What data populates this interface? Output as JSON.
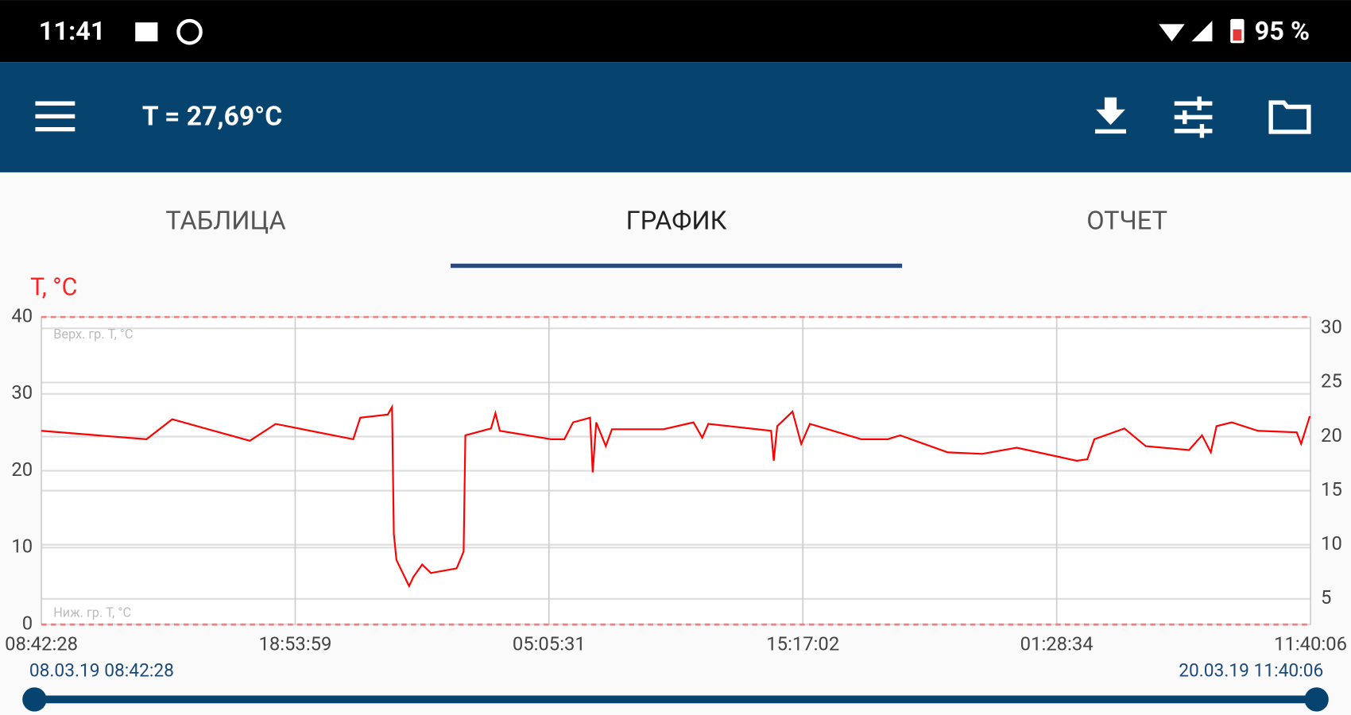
{
  "status_bar": {
    "time": "11:41",
    "battery": "95 %"
  },
  "toolbar": {
    "title": "T = 27,69°C"
  },
  "tabs": [
    "ТАБЛИЦА",
    "ГРАФИК",
    "ОТЧЕТ"
  ],
  "range": {
    "start": "08.03.19 08:42:28",
    "end": "20.03.19 11:40:06"
  },
  "chart_data": {
    "type": "line",
    "ylabel": "T, °C",
    "color": "#ff0000",
    "xlim": [
      0,
      290.96
    ],
    "xticks": [
      {
        "value": 0,
        "label": "08:42:28"
      },
      {
        "value": 58.19,
        "label": "18:53:59"
      },
      {
        "value": 116.38,
        "label": "05:05:31"
      },
      {
        "value": 174.58,
        "label": "15:17:02"
      },
      {
        "value": 232.77,
        "label": "01:28:34"
      },
      {
        "value": 290.96,
        "label": "11:40:06"
      }
    ],
    "ylim": [
      0,
      40
    ],
    "yticks": [
      0,
      10,
      20,
      30,
      40
    ],
    "y2lim": [
      2.63,
      31.05
    ],
    "y2ticks": [
      5,
      10,
      15,
      20,
      25,
      30
    ],
    "grid": true,
    "upper_limit": {
      "value": 40,
      "label": "Верх. гр. T, °C"
    },
    "lower_limit": {
      "value": 0,
      "label": "Ниж. гр. T, °C"
    },
    "x": [
      0,
      24.1,
      30.0,
      47.8,
      53.7,
      71.5,
      73.1,
      79.4,
      80.4,
      80.8,
      81.4,
      84.3,
      85.3,
      87.3,
      89.3,
      95.2,
      96.8,
      97.2,
      103.1,
      104.1,
      105.1,
      116.9,
      119.9,
      121.9,
      125.8,
      126.4,
      127.2,
      129.4,
      130.8,
      142.6,
      149.5,
      151.5,
      152.9,
      167.3,
      167.9,
      168.7,
      172.2,
      174.2,
      176.2,
      188.0,
      194.0,
      196.9,
      207.8,
      215.7,
      223.6,
      237.4,
      239.8,
      241.4,
      248.3,
      253.2,
      263.1,
      266.1,
      268.1,
      269.4,
      272.9,
      278.9,
      287.8,
      288.8,
      290.8
    ],
    "values": [
      25.2,
      24.1,
      26.7,
      23.9,
      26.1,
      24.1,
      26.9,
      27.3,
      28.3,
      11.8,
      8.4,
      5.0,
      6.2,
      7.8,
      6.7,
      7.3,
      9.5,
      24.6,
      25.5,
      27.5,
      25.2,
      24.1,
      24.1,
      26.3,
      26.9,
      19.8,
      26.3,
      23.2,
      25.4,
      25.4,
      26.3,
      24.3,
      26.1,
      25.2,
      21.3,
      25.8,
      27.7,
      23.5,
      26.1,
      24.1,
      24.1,
      24.6,
      22.4,
      22.2,
      23.0,
      21.3,
      21.5,
      24.1,
      25.5,
      23.2,
      22.7,
      24.6,
      22.4,
      25.8,
      26.3,
      25.2,
      25.0,
      23.5,
      27.1
    ]
  }
}
